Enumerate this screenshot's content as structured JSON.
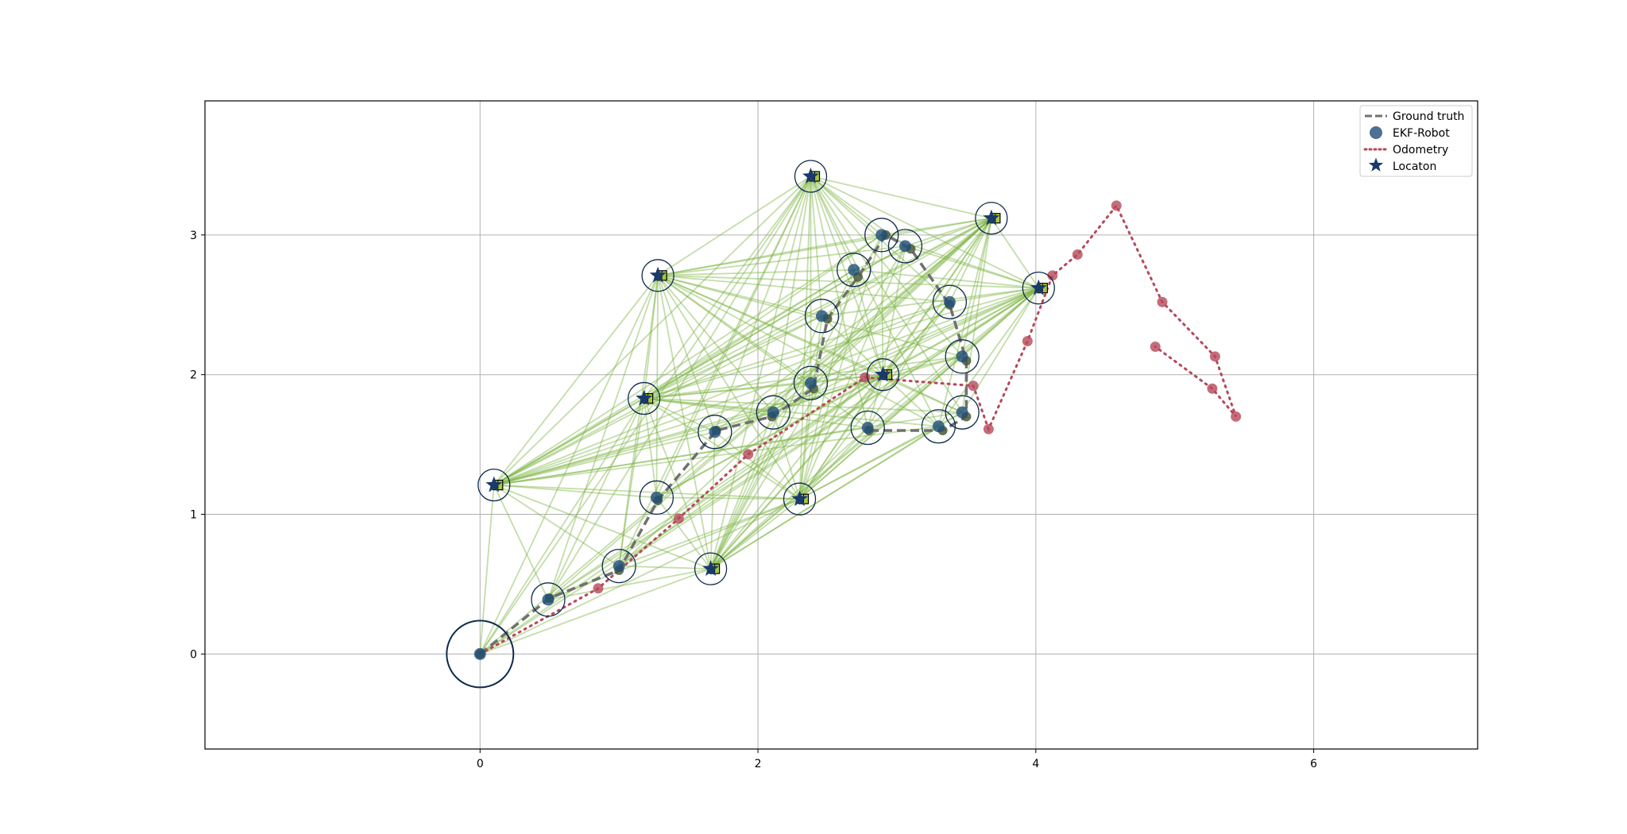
{
  "chart_data": {
    "type": "scatter",
    "title": "",
    "xlabel": "",
    "ylabel": "",
    "xlim": [
      -1.98,
      7.18
    ],
    "ylim": [
      -0.68,
      3.96
    ],
    "xticks": [
      0,
      2,
      4,
      6
    ],
    "yticks": [
      0,
      1,
      2,
      3
    ],
    "grid": true,
    "legend_position": "upper-right",
    "colors": {
      "ground_truth": "#707070",
      "ekf_robot": "#1f4e79",
      "odometry": "#b5485a",
      "location": "#1a3a6b",
      "landmark_estimate": "#a8c63c",
      "observation_links": "#7cb342",
      "grid": "#b0b0b0"
    },
    "landmarks": [
      {
        "x": 0.1,
        "y": 1.21
      },
      {
        "x": 1.28,
        "y": 2.71
      },
      {
        "x": 1.18,
        "y": 1.83
      },
      {
        "x": 2.38,
        "y": 3.42
      },
      {
        "x": 3.68,
        "y": 3.12
      },
      {
        "x": 4.02,
        "y": 2.62
      },
      {
        "x": 2.9,
        "y": 2.0
      },
      {
        "x": 2.3,
        "y": 1.11
      },
      {
        "x": 1.66,
        "y": 0.61
      }
    ],
    "series": [
      {
        "name": "Ground truth",
        "style": "dashed",
        "x": [
          0,
          0.5,
          1.0,
          1.28,
          1.7,
          2.1,
          2.4,
          2.5,
          2.72,
          2.92,
          3.1,
          3.38,
          3.5,
          3.5,
          3.33,
          2.8
        ],
        "y": [
          0,
          0.4,
          0.6,
          1.1,
          1.6,
          1.7,
          1.9,
          2.4,
          2.7,
          3.0,
          2.9,
          2.5,
          2.1,
          1.7,
          1.6,
          1.6
        ]
      },
      {
        "name": "EKF-Robot",
        "style": "markers",
        "x": [
          0,
          0.49,
          1.0,
          1.27,
          1.69,
          2.11,
          2.38,
          2.46,
          2.69,
          2.89,
          3.06,
          3.38,
          3.47,
          3.47,
          3.3,
          2.79
        ],
        "y": [
          0,
          0.39,
          0.63,
          1.12,
          1.59,
          1.73,
          1.94,
          2.42,
          2.75,
          3.0,
          2.92,
          2.52,
          2.13,
          1.73,
          1.63,
          1.62
        ]
      },
      {
        "name": "Odometry",
        "style": "dotted",
        "x": [
          0,
          0.85,
          1.43,
          1.93,
          2.77,
          3.55,
          3.66,
          3.94,
          4.12,
          4.3,
          4.58,
          4.91,
          5.29,
          5.44,
          5.27,
          4.86
        ],
        "y": [
          0,
          0.47,
          0.97,
          1.43,
          1.98,
          1.92,
          1.61,
          2.24,
          2.71,
          2.86,
          3.21,
          2.52,
          2.13,
          1.7,
          1.9,
          2.2
        ]
      }
    ],
    "location_marker": {
      "name": "Locaton"
    }
  },
  "legend": {
    "items": [
      {
        "label": "Ground truth"
      },
      {
        "label": "EKF-Robot"
      },
      {
        "label": "Odometry"
      },
      {
        "label": "Locaton"
      }
    ]
  }
}
